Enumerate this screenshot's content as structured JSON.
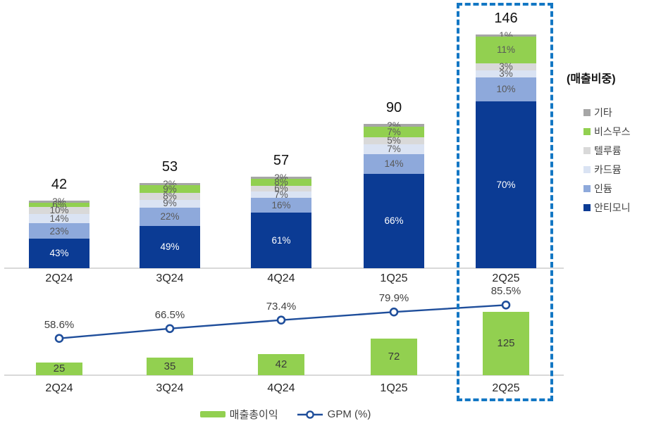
{
  "legend": {
    "title": "(매출비중)",
    "items": [
      {
        "label": "기타",
        "color": "#A6A6A6"
      },
      {
        "label": "비스무스",
        "color": "#92D050"
      },
      {
        "label": "텔루륨",
        "color": "#D9D9D9"
      },
      {
        "label": "카드뮴",
        "color": "#DAE3F3"
      },
      {
        "label": "인듐",
        "color": "#8EA9DB"
      },
      {
        "label": "안티모니",
        "color": "#0B3B94"
      }
    ]
  },
  "bottom_legend": {
    "bar_label": "매출총이익",
    "line_label": "GPM (%)",
    "bar_color": "#92D050",
    "line_color": "#1F4E9B"
  },
  "highlight": {
    "category": "2Q25",
    "color": "#1377C4"
  },
  "chart_data": [
    {
      "type": "bar",
      "subtype": "stacked-bar-share",
      "title": "",
      "categories": [
        "2Q24",
        "3Q24",
        "4Q24",
        "1Q25",
        "2Q25"
      ],
      "totals": [
        42,
        53,
        57,
        90,
        146
      ],
      "value_suffix": "%",
      "legend_title": "(매출비중)",
      "legend_position": "right",
      "series": [
        {
          "name": "안티모니",
          "color": "#0B3B94",
          "label_color": "#FFFFFF",
          "values": [
            43,
            49,
            61,
            66,
            70
          ]
        },
        {
          "name": "인듐",
          "color": "#8EA9DB",
          "label_color": "#595959",
          "values": [
            23,
            22,
            16,
            14,
            10
          ]
        },
        {
          "name": "카드뮴",
          "color": "#DAE3F3",
          "label_color": "#595959",
          "values": [
            14,
            9,
            7,
            7,
            3
          ]
        },
        {
          "name": "텔루륨",
          "color": "#D9D9D9",
          "label_color": "#595959",
          "values": [
            10,
            8,
            6,
            5,
            3
          ]
        },
        {
          "name": "비스무스",
          "color": "#92D050",
          "label_color": "#595959",
          "values": [
            6,
            9,
            8,
            7,
            11
          ]
        },
        {
          "name": "기타",
          "color": "#A6A6A6",
          "label_color": "#595959",
          "values": [
            3,
            2,
            2,
            2,
            1
          ]
        }
      ]
    },
    {
      "type": "bar",
      "subtype": "bar-with-line",
      "title": "",
      "categories": [
        "2Q24",
        "3Q24",
        "4Q24",
        "1Q25",
        "2Q25"
      ],
      "legend_position": "bottom",
      "series": [
        {
          "name": "매출총이익",
          "chart": "bar",
          "color": "#92D050",
          "values": [
            25,
            35,
            42,
            72,
            125
          ]
        },
        {
          "name": "GPM (%)",
          "chart": "line",
          "color": "#1F4E9B",
          "marker": "circle-open",
          "value_suffix": "%",
          "values": [
            58.6,
            66.5,
            73.4,
            79.9,
            85.5
          ]
        }
      ]
    }
  ]
}
